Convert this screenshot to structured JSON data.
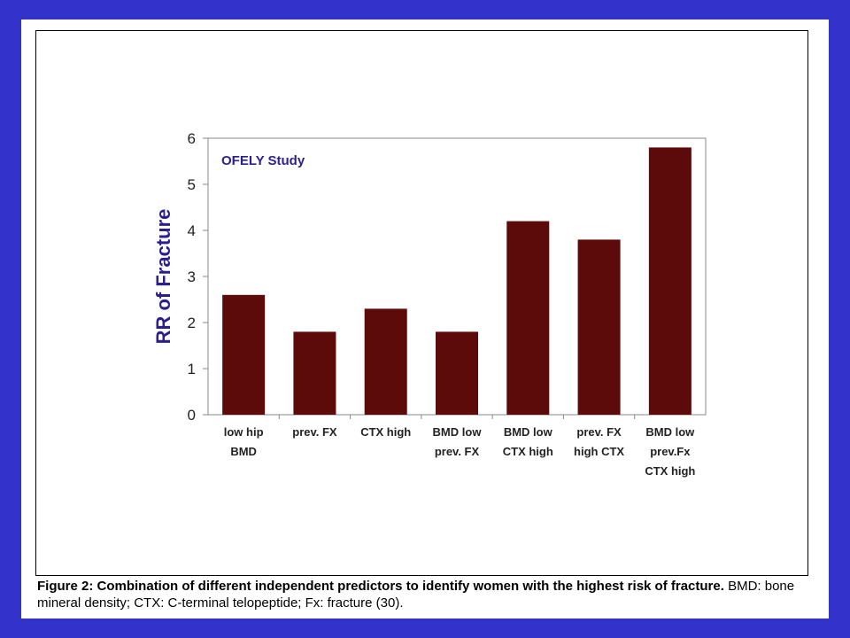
{
  "chart_data": {
    "type": "bar",
    "annotation": "OFELY Study",
    "ylabel": "RR of Fracture",
    "xlabel": "",
    "ylim": [
      0,
      6
    ],
    "yticks": [
      0,
      1,
      2,
      3,
      4,
      5,
      6
    ],
    "grid": false,
    "bar_color": "#5c0a0a",
    "categories": [
      [
        "low hip",
        "BMD"
      ],
      [
        "prev. FX"
      ],
      [
        "CTX high"
      ],
      [
        "BMD low",
        "prev. FX"
      ],
      [
        "BMD low",
        "CTX high"
      ],
      [
        "prev. FX",
        "high CTX"
      ],
      [
        "BMD low",
        "prev.Fx",
        "CTX high"
      ]
    ],
    "values": [
      2.6,
      1.8,
      2.3,
      1.8,
      4.2,
      3.8,
      5.8
    ]
  },
  "caption": {
    "figure_label": "Figure 2",
    "bold_text": ": Combination of different independent predictors to identify women with the highest risk of fracture.",
    "rest_text": " BMD: bone mineral density; CTX: C-terminal telopeptide; Fx: fracture (30)."
  },
  "colors": {
    "background": "#3333cc",
    "page": "#ffffff",
    "annotation": "#2b1f8f",
    "ylabel": "#2b1f8f"
  }
}
